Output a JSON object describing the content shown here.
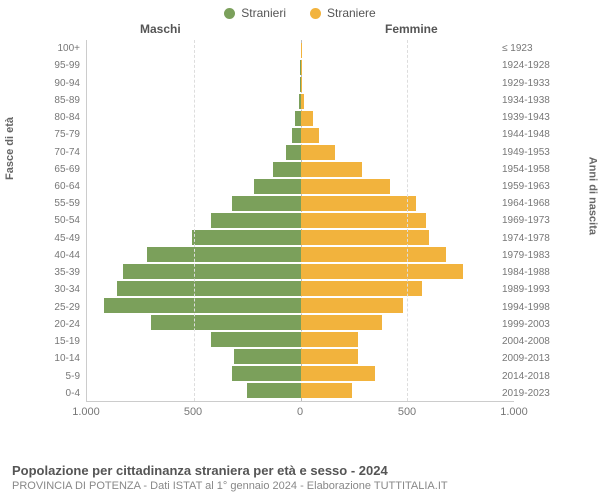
{
  "legend": {
    "male": {
      "label": "Stranieri",
      "color": "#7ba05b"
    },
    "female": {
      "label": "Straniere",
      "color": "#f2b33d"
    }
  },
  "headers": {
    "male": "Maschi",
    "female": "Femmine"
  },
  "axis": {
    "left_label": "Fasce di età",
    "right_label": "Anni di nascita",
    "xmax": 1000,
    "xticks": [
      1000,
      500,
      0,
      500,
      1000
    ],
    "xtick_labels": [
      "1.000",
      "500",
      "0",
      "500",
      "1.000"
    ]
  },
  "chart": {
    "type": "population-pyramid",
    "background_color": "#ffffff",
    "grid_color": "#dddddd",
    "rows": [
      {
        "age": "100+",
        "birth": "≤ 1923",
        "m": 0,
        "f": 2
      },
      {
        "age": "95-99",
        "birth": "1924-1928",
        "m": 2,
        "f": 4
      },
      {
        "age": "90-94",
        "birth": "1929-1933",
        "m": 4,
        "f": 6
      },
      {
        "age": "85-89",
        "birth": "1934-1938",
        "m": 8,
        "f": 18
      },
      {
        "age": "80-84",
        "birth": "1939-1943",
        "m": 28,
        "f": 60
      },
      {
        "age": "75-79",
        "birth": "1944-1948",
        "m": 40,
        "f": 85
      },
      {
        "age": "70-74",
        "birth": "1949-1953",
        "m": 70,
        "f": 160
      },
      {
        "age": "65-69",
        "birth": "1954-1958",
        "m": 130,
        "f": 290
      },
      {
        "age": "60-64",
        "birth": "1959-1963",
        "m": 220,
        "f": 420
      },
      {
        "age": "55-59",
        "birth": "1964-1968",
        "m": 320,
        "f": 540
      },
      {
        "age": "50-54",
        "birth": "1969-1973",
        "m": 420,
        "f": 590
      },
      {
        "age": "45-49",
        "birth": "1974-1978",
        "m": 510,
        "f": 600
      },
      {
        "age": "40-44",
        "birth": "1979-1983",
        "m": 720,
        "f": 680
      },
      {
        "age": "35-39",
        "birth": "1984-1988",
        "m": 830,
        "f": 760
      },
      {
        "age": "30-34",
        "birth": "1989-1993",
        "m": 860,
        "f": 570
      },
      {
        "age": "25-29",
        "birth": "1994-1998",
        "m": 920,
        "f": 480
      },
      {
        "age": "20-24",
        "birth": "1999-2003",
        "m": 700,
        "f": 380
      },
      {
        "age": "15-19",
        "birth": "2004-2008",
        "m": 420,
        "f": 270
      },
      {
        "age": "10-14",
        "birth": "2009-2013",
        "m": 310,
        "f": 270
      },
      {
        "age": "5-9",
        "birth": "2014-2018",
        "m": 320,
        "f": 350
      },
      {
        "age": "0-4",
        "birth": "2019-2023",
        "m": 250,
        "f": 240
      }
    ]
  },
  "footer": {
    "title": "Popolazione per cittadinanza straniera per età e sesso - 2024",
    "subtitle": "PROVINCIA DI POTENZA - Dati ISTAT al 1° gennaio 2024 - Elaborazione TUTTITALIA.IT"
  }
}
